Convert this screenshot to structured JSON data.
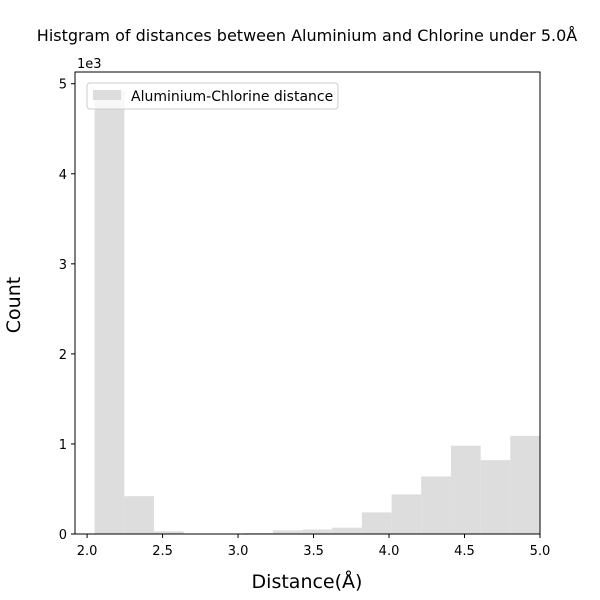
{
  "chart_data": {
    "type": "bar",
    "title": "Histgram of distances between Aluminium and Chlorine under 5.0Å",
    "xlabel": "Distance(Å)",
    "ylabel": "Count",
    "y_multiplier_label": "1e3",
    "xlim": [
      1.92,
      5.0
    ],
    "ylim": [
      0,
      5.13
    ],
    "xticks": [
      2.0,
      2.5,
      3.0,
      3.5,
      4.0,
      4.5,
      5.0
    ],
    "xtick_labels": [
      "2.0",
      "2.5",
      "3.0",
      "3.5",
      "4.0",
      "4.5",
      "5.0"
    ],
    "yticks": [
      0,
      1,
      2,
      3,
      4,
      5
    ],
    "ytick_labels": [
      "0",
      "1",
      "2",
      "3",
      "4",
      "5"
    ],
    "grid": false,
    "legend_position": "top-left",
    "series": [
      {
        "name": "Aluminium-Chlorine distance",
        "color": "#dddddd",
        "bin_edges": [
          2.05,
          2.247,
          2.443,
          2.64,
          2.837,
          3.033,
          3.23,
          3.427,
          3.623,
          3.82,
          4.017,
          4.213,
          4.41,
          4.607,
          4.803,
          5.0
        ],
        "values": [
          4.92,
          0.42,
          0.03,
          0.0,
          0.0,
          0.01,
          0.04,
          0.05,
          0.07,
          0.24,
          0.44,
          0.64,
          0.98,
          0.82,
          1.09
        ]
      }
    ]
  }
}
